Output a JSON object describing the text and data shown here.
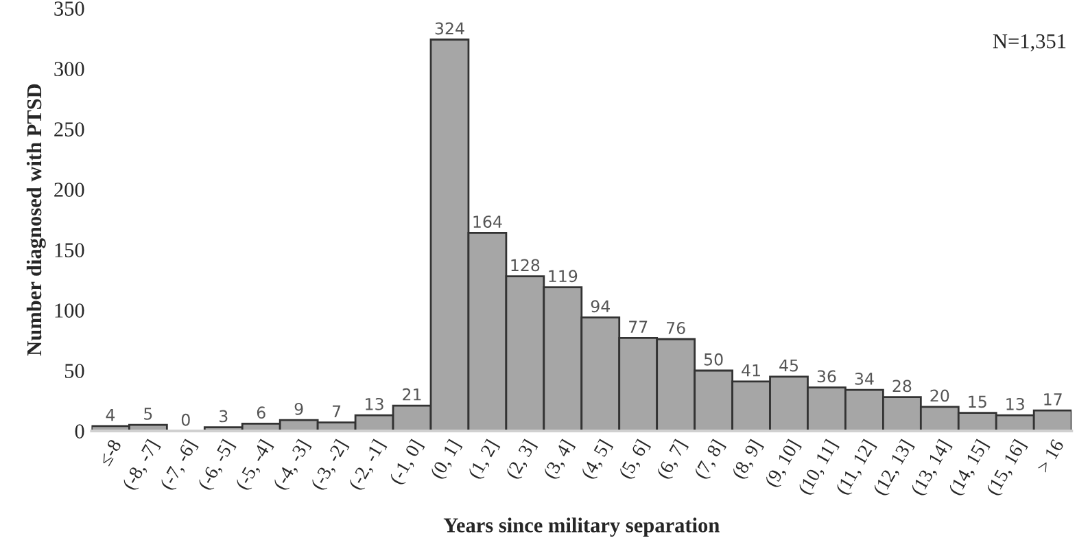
{
  "chart_data": {
    "type": "bar",
    "xlabel": "Years since military separation",
    "ylabel": "Number diagnosed with PTSD",
    "categories": [
      "≤-8",
      "(-8, -7]",
      "(-7, -6]",
      "(-6, -5]",
      "(-5, -4]",
      "(-4, -3]",
      "(-3, -2]",
      "(-2, -1]",
      "(-1, 0]",
      "(0, 1]",
      "(1, 2]",
      "(2, 3]",
      "(3, 4]",
      "(4, 5]",
      "(5, 6]",
      "(6, 7]",
      "(7, 8]",
      "(8, 9]",
      "(9, 10]",
      "(10, 11]",
      "(11, 12]",
      "(12, 13]",
      "(13, 14]",
      "(14, 15]",
      "(15, 16]",
      "> 16"
    ],
    "values": [
      4,
      5,
      0,
      3,
      6,
      9,
      7,
      13,
      21,
      324,
      164,
      128,
      119,
      94,
      77,
      76,
      50,
      41,
      45,
      36,
      34,
      28,
      20,
      15,
      13,
      17
    ],
    "color": "#a6a6a6",
    "data_labels": true,
    "ylim": [
      0,
      350
    ],
    "yticks": [
      0,
      50,
      100,
      150,
      200,
      250,
      300,
      350
    ],
    "grid": false,
    "legend": false,
    "annotations": [
      "N=1,351"
    ]
  }
}
